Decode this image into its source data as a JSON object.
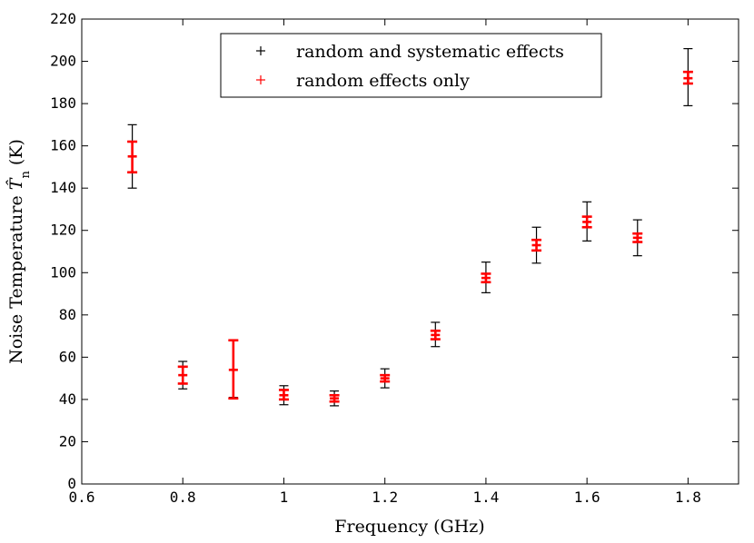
{
  "chart_data": {
    "type": "scatter",
    "title": "",
    "xlabel": "Frequency (GHz)",
    "ylabel": "Noise Temperature T̂n (K)",
    "ylabel_parts": {
      "prefix": "Noise Temperature ",
      "symbol": "T̂",
      "subscript": "n",
      "suffix": " (K)"
    },
    "xlim": [
      0.6,
      1.9
    ],
    "ylim": [
      0,
      220
    ],
    "xticks": [
      0.6,
      0.8,
      1.0,
      1.2,
      1.4,
      1.6,
      1.8
    ],
    "xtick_labels": [
      "0.6",
      "0.8",
      "1",
      "1.2",
      "1.4",
      "1.6",
      "1.8"
    ],
    "yticks": [
      0,
      20,
      40,
      60,
      80,
      100,
      120,
      140,
      160,
      180,
      200,
      220
    ],
    "ytick_labels": [
      "0",
      "20",
      "40",
      "60",
      "80",
      "100",
      "120",
      "140",
      "160",
      "180",
      "200",
      "220"
    ],
    "grid": false,
    "legend_position": "top-center",
    "series": [
      {
        "name": "random and systematic effects",
        "color": "#000000",
        "points": [
          {
            "x": 0.7,
            "y": 155,
            "low": 140,
            "high": 170
          },
          {
            "x": 0.8,
            "y": 51.5,
            "low": 45,
            "high": 58
          },
          {
            "x": 0.9,
            "y": 54,
            "low": 41,
            "high": 68
          },
          {
            "x": 1.0,
            "y": 42,
            "low": 37.5,
            "high": 46.5
          },
          {
            "x": 1.1,
            "y": 40.5,
            "low": 37,
            "high": 44
          },
          {
            "x": 1.2,
            "y": 50,
            "low": 45.5,
            "high": 54.5
          },
          {
            "x": 1.3,
            "y": 70.5,
            "low": 65,
            "high": 76.5
          },
          {
            "x": 1.4,
            "y": 97.5,
            "low": 90.5,
            "high": 105
          },
          {
            "x": 1.5,
            "y": 113,
            "low": 104.5,
            "high": 121.5
          },
          {
            "x": 1.6,
            "y": 124,
            "low": 115,
            "high": 133.5
          },
          {
            "x": 1.7,
            "y": 116.5,
            "low": 108,
            "high": 125
          },
          {
            "x": 1.8,
            "y": 192,
            "low": 179,
            "high": 206
          }
        ]
      },
      {
        "name": "random effects only",
        "color": "#ff0000",
        "points": [
          {
            "x": 0.7,
            "y": 155,
            "low": 147.5,
            "high": 162
          },
          {
            "x": 0.8,
            "y": 51.5,
            "low": 47.5,
            "high": 55.5
          },
          {
            "x": 0.9,
            "y": 54,
            "low": 40.5,
            "high": 68
          },
          {
            "x": 1.0,
            "y": 42,
            "low": 40,
            "high": 44.5
          },
          {
            "x": 1.1,
            "y": 40.5,
            "low": 39,
            "high": 42
          },
          {
            "x": 1.2,
            "y": 50,
            "low": 48.5,
            "high": 51.5
          },
          {
            "x": 1.3,
            "y": 70.5,
            "low": 68.5,
            "high": 72.5
          },
          {
            "x": 1.4,
            "y": 97.5,
            "low": 95.5,
            "high": 99.5
          },
          {
            "x": 1.5,
            "y": 113,
            "low": 110.5,
            "high": 115.5
          },
          {
            "x": 1.6,
            "y": 124,
            "low": 121.5,
            "high": 126.5
          },
          {
            "x": 1.7,
            "y": 116.5,
            "low": 114.5,
            "high": 118.5
          },
          {
            "x": 1.8,
            "y": 192,
            "low": 189.5,
            "high": 195
          }
        ]
      }
    ]
  }
}
